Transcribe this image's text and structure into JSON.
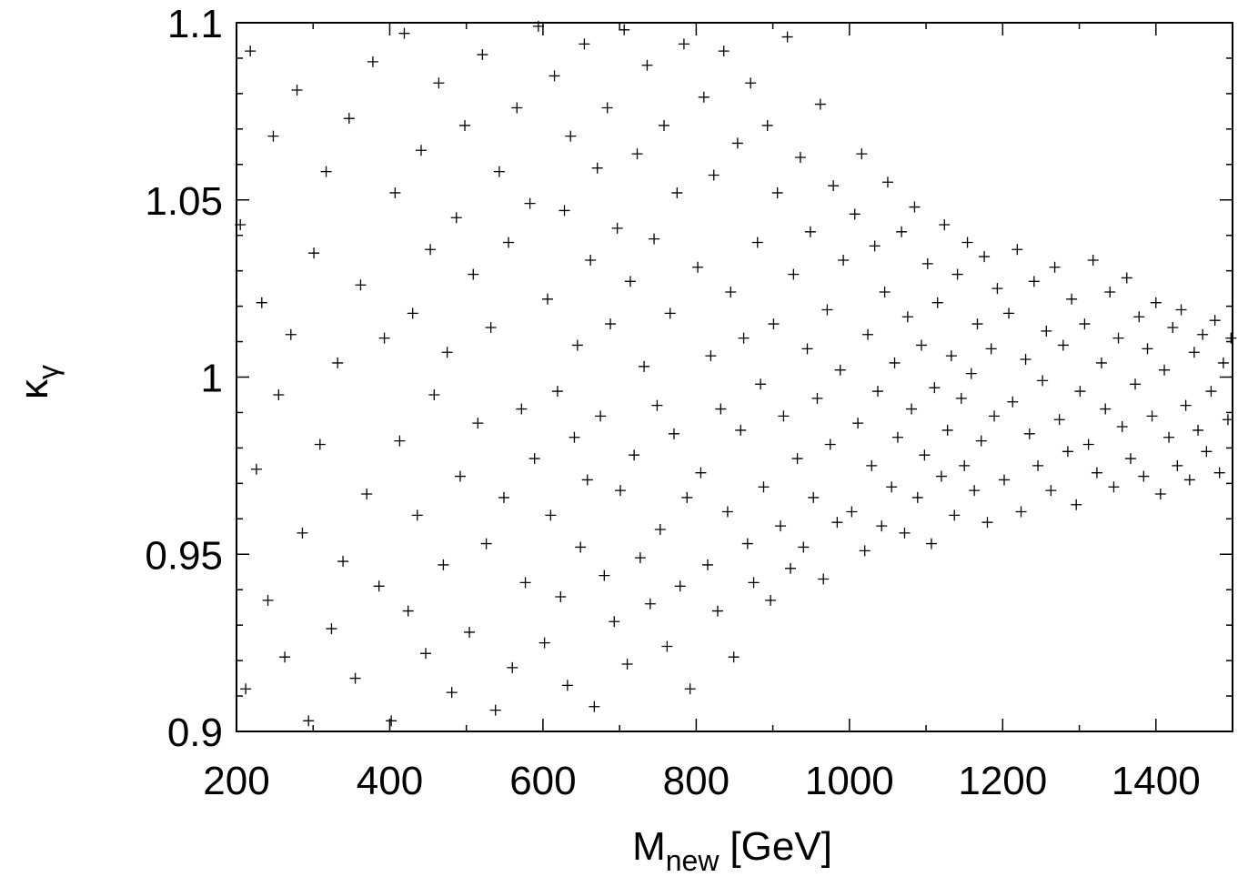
{
  "chart_data": {
    "type": "scatter",
    "xlabel": {
      "main": "M",
      "sub": "new",
      "unit": "[GeV]"
    },
    "ylabel": {
      "main": "κ",
      "sub": "γ"
    },
    "xlim": [
      200,
      1500
    ],
    "ylim": [
      0.9,
      1.1
    ],
    "xticks": [
      200,
      400,
      600,
      800,
      1000,
      1200,
      1400
    ],
    "yticks": [
      0.9,
      0.95,
      1,
      1.05,
      1.1
    ],
    "xminorticks": [
      300,
      500,
      700,
      900,
      1100,
      1300,
      1500
    ],
    "yminorticks": [
      0.91,
      0.92,
      0.93,
      0.94,
      0.96,
      0.97,
      0.98,
      0.99,
      1.01,
      1.02,
      1.03,
      1.04,
      1.06,
      1.07,
      1.08,
      1.09
    ],
    "marker": "plus",
    "color": "#000000",
    "x": [
      205,
      212,
      218,
      226,
      233,
      241,
      248,
      255,
      263,
      271,
      279,
      286,
      294,
      301,
      309,
      317,
      324,
      332,
      339,
      347,
      355,
      362,
      370,
      378,
      386,
      393,
      402,
      407,
      413,
      419,
      424,
      430,
      436,
      441,
      447,
      453,
      458,
      464,
      470,
      475,
      481,
      487,
      492,
      498,
      504,
      509,
      515,
      521,
      526,
      532,
      538,
      543,
      549,
      555,
      560,
      566,
      572,
      577,
      583,
      589,
      594,
      602,
      606,
      610,
      615,
      619,
      623,
      628,
      632,
      636,
      641,
      645,
      649,
      654,
      658,
      662,
      667,
      671,
      675,
      680,
      684,
      688,
      693,
      697,
      701,
      706,
      710,
      714,
      719,
      723,
      727,
      732,
      736,
      740,
      745,
      749,
      753,
      758,
      762,
      766,
      771,
      775,
      779,
      784,
      788,
      792,
      802,
      806,
      810,
      815,
      819,
      823,
      828,
      832,
      836,
      841,
      845,
      849,
      854,
      858,
      862,
      867,
      871,
      875,
      880,
      884,
      888,
      893,
      897,
      901,
      906,
      910,
      914,
      919,
      923,
      927,
      932,
      936,
      940,
      945,
      949,
      953,
      958,
      962,
      966,
      971,
      975,
      979,
      984,
      988,
      992,
      1003,
      1007,
      1011,
      1016,
      1020,
      1024,
      1029,
      1033,
      1037,
      1042,
      1046,
      1050,
      1055,
      1059,
      1063,
      1068,
      1072,
      1076,
      1081,
      1085,
      1089,
      1094,
      1098,
      1102,
      1107,
      1111,
      1115,
      1120,
      1124,
      1128,
      1133,
      1137,
      1141,
      1146,
      1150,
      1154,
      1159,
      1163,
      1167,
      1172,
      1176,
      1180,
      1185,
      1189,
      1193,
      1202,
      1208,
      1213,
      1219,
      1224,
      1230,
      1235,
      1241,
      1246,
      1252,
      1257,
      1263,
      1268,
      1274,
      1279,
      1285,
      1290,
      1296,
      1301,
      1307,
      1312,
      1318,
      1323,
      1329,
      1334,
      1340,
      1345,
      1351,
      1356,
      1362,
      1367,
      1373,
      1378,
      1384,
      1389,
      1395,
      1400,
      1406,
      1411,
      1417,
      1422,
      1428,
      1433,
      1439,
      1444,
      1450,
      1455,
      1461,
      1466,
      1472,
      1477,
      1483,
      1488,
      1494,
      1498
    ],
    "values": [
      1.043,
      0.912,
      1.092,
      0.974,
      1.021,
      0.937,
      1.068,
      0.995,
      0.921,
      1.012,
      1.081,
      0.956,
      0.903,
      1.035,
      0.981,
      1.058,
      0.929,
      1.004,
      0.948,
      1.073,
      0.915,
      1.026,
      0.967,
      1.089,
      0.941,
      1.011,
      0.903,
      1.052,
      0.982,
      1.097,
      0.934,
      1.018,
      0.961,
      1.064,
      0.922,
      1.036,
      0.995,
      1.083,
      0.947,
      1.007,
      0.911,
      1.045,
      0.972,
      1.071,
      0.928,
      1.029,
      0.987,
      1.091,
      0.953,
      1.014,
      0.906,
      1.058,
      0.966,
      1.038,
      0.918,
      1.076,
      0.991,
      0.942,
      1.049,
      0.977,
      1.099,
      0.925,
      1.022,
      0.961,
      1.085,
      0.996,
      0.938,
      1.047,
      0.913,
      1.068,
      0.983,
      1.009,
      0.952,
      1.094,
      0.971,
      1.033,
      0.907,
      1.059,
      0.989,
      0.944,
      1.076,
      1.015,
      0.931,
      1.042,
      0.968,
      1.098,
      0.919,
      1.027,
      0.978,
      1.063,
      0.949,
      1.003,
      1.088,
      0.936,
      1.039,
      0.992,
      0.957,
      1.071,
      0.924,
      1.018,
      0.984,
      1.052,
      0.941,
      1.094,
      0.966,
      0.912,
      1.031,
      0.973,
      1.079,
      0.947,
      1.006,
      1.057,
      0.934,
      0.991,
      1.092,
      0.962,
      1.024,
      0.921,
      1.066,
      0.985,
      1.011,
      0.953,
      1.083,
      0.942,
      1.038,
      0.998,
      0.969,
      1.071,
      0.937,
      1.015,
      1.052,
      0.958,
      0.989,
      1.096,
      0.946,
      1.029,
      0.977,
      1.062,
      0.952,
      1.008,
      1.041,
      0.966,
      0.994,
      1.077,
      0.943,
      1.019,
      0.981,
      1.054,
      0.959,
      1.002,
      1.033,
      0.962,
      1.046,
      0.987,
      1.063,
      0.951,
      1.012,
      0.975,
      1.037,
      0.996,
      0.958,
      1.024,
      1.055,
      0.969,
      1.004,
      0.983,
      1.041,
      0.956,
      1.017,
      0.991,
      1.048,
      0.966,
      1.009,
      0.978,
      1.032,
      0.953,
      0.997,
      1.021,
      0.972,
      1.043,
      0.985,
      1.006,
      0.961,
      1.029,
      0.994,
      0.975,
      1.038,
      1.001,
      0.968,
      1.015,
      0.982,
      1.034,
      0.959,
      1.008,
      0.989,
      1.025,
      0.971,
      1.018,
      0.993,
      1.036,
      0.962,
      1.005,
      0.984,
      1.027,
      0.975,
      0.999,
      1.013,
      0.968,
      1.031,
      0.988,
      1.009,
      0.979,
      1.022,
      0.964,
      0.996,
      1.015,
      0.981,
      1.033,
      0.973,
      1.004,
      0.991,
      1.024,
      0.969,
      1.011,
      0.986,
      1.028,
      0.977,
      0.998,
      1.017,
      0.972,
      1.008,
      0.989,
      1.021,
      0.967,
      1.002,
      0.983,
      1.014,
      0.975,
      1.019,
      0.992,
      0.971,
      1.007,
      0.985,
      1.012,
      0.979,
      0.996,
      1.016,
      0.973,
      1.004,
      0.988,
      1.011
    ]
  }
}
